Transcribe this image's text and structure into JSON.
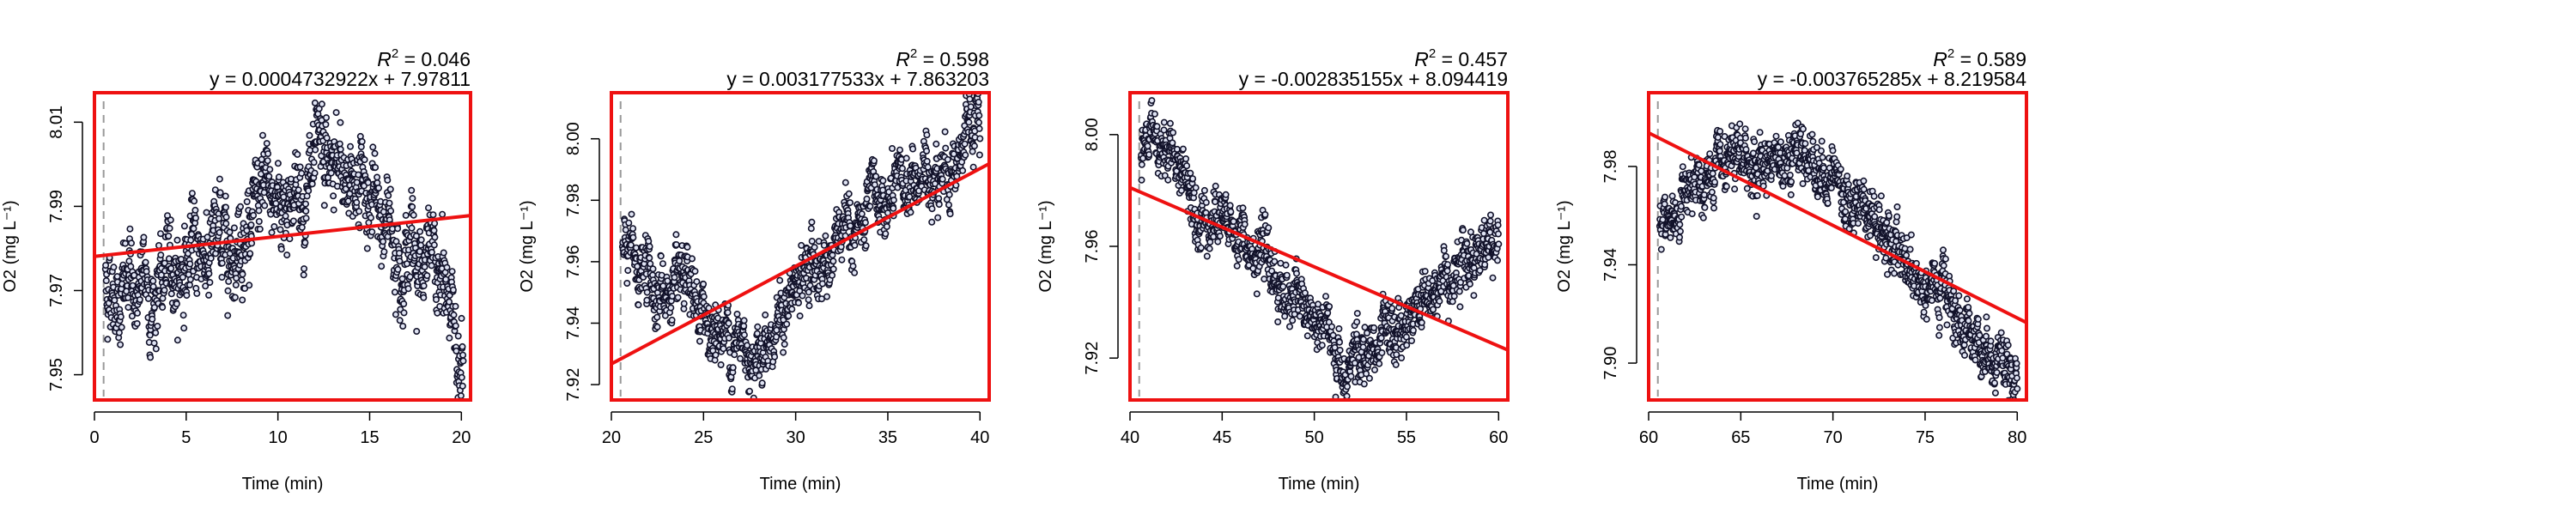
{
  "chart_data": [
    {
      "type": "scatter",
      "ylabel": "O2 (mg L⁻¹)",
      "xlabel": "Time (min)",
      "r2_value": "0.046",
      "equation": "y = 0.0004732922x + 7.97811",
      "xlim": [
        0,
        20.5
      ],
      "ylim": [
        7.944,
        8.017
      ],
      "xticks": [
        "0",
        "5",
        "10",
        "15",
        "20"
      ],
      "yticks": [
        "7.95",
        "7.97",
        "7.99",
        "8.01"
      ],
      "xtick_values": [
        0,
        5,
        10,
        15,
        20
      ],
      "ytick_values": [
        7.95,
        7.97,
        7.99,
        8.01
      ],
      "vline_x": 0.5,
      "fit": {
        "slope": 0.0004732922,
        "intercept": 7.97811
      },
      "trend_x": [
        0.6,
        2,
        3.2,
        5,
        7,
        9,
        10.5,
        12,
        13.5,
        14.5,
        15.5,
        17,
        18.5,
        19.5,
        20.1
      ],
      "trend_y": [
        7.972,
        7.97,
        7.969,
        7.978,
        7.982,
        7.989,
        7.993,
        7.995,
        7.997,
        7.998,
        7.987,
        7.983,
        7.975,
        7.964,
        7.955
      ],
      "noise": 0.0055,
      "n_points": 1300
    },
    {
      "type": "scatter",
      "ylabel": "O2 (mg L⁻¹)",
      "xlabel": "Time (min)",
      "r2_value": "0.598",
      "equation": "y = 0.003177533x + 7.863203",
      "xlim": [
        20,
        40.5
      ],
      "ylim": [
        7.915,
        8.015
      ],
      "xticks": [
        "20",
        "25",
        "30",
        "35",
        "40"
      ],
      "yticks": [
        "7.92",
        "7.94",
        "7.96",
        "7.98",
        "8.00"
      ],
      "xtick_values": [
        20,
        25,
        30,
        35,
        40
      ],
      "ytick_values": [
        7.92,
        7.94,
        7.96,
        7.98,
        8.0
      ],
      "vline_x": 20.5,
      "fit": {
        "slope": 0.003177533,
        "intercept": 7.863203
      },
      "trend_x": [
        20.6,
        22,
        24,
        26,
        27.5,
        29,
        31,
        33,
        35,
        37,
        39,
        40
      ],
      "trend_y": [
        7.962,
        7.955,
        7.945,
        7.937,
        7.932,
        7.94,
        7.958,
        7.968,
        7.978,
        7.988,
        7.996,
        8.002
      ],
      "noise": 0.0055,
      "n_points": 1300
    },
    {
      "type": "scatter",
      "ylabel": "O2 (mg L⁻¹)",
      "xlabel": "Time (min)",
      "r2_value": "0.457",
      "equation": "y = -0.002835155x + 8.094419",
      "xlim": [
        40,
        60.5
      ],
      "ylim": [
        7.905,
        8.015
      ],
      "xticks": [
        "40",
        "45",
        "50",
        "55",
        "60"
      ],
      "yticks": [
        "7.92",
        "7.96",
        "8.00"
      ],
      "xtick_values": [
        40,
        45,
        50,
        55,
        60
      ],
      "ytick_values": [
        7.92,
        7.96,
        8.0
      ],
      "vline_x": 40.5,
      "fit": {
        "slope": -0.002835155,
        "intercept": 8.094419
      },
      "trend_x": [
        40.6,
        41.2,
        42,
        44,
        46,
        48,
        50,
        52,
        54,
        55.5,
        57,
        58.5,
        60
      ],
      "trend_y": [
        7.985,
        8.002,
        7.995,
        7.975,
        7.962,
        7.948,
        7.932,
        7.918,
        7.925,
        7.938,
        7.95,
        7.958,
        7.965
      ],
      "noise": 0.0055,
      "n_points": 1300
    },
    {
      "type": "scatter",
      "ylabel": "O2 (mg L⁻¹)",
      "xlabel": "Time (min)",
      "r2_value": "0.589",
      "equation": "y = -0.003765285x + 8.219584",
      "xlim": [
        60,
        80.5
      ],
      "ylim": [
        7.885,
        8.01
      ],
      "xticks": [
        "60",
        "65",
        "70",
        "75",
        "80"
      ],
      "yticks": [
        "7.90",
        "7.94",
        "7.98"
      ],
      "xtick_values": [
        60,
        65,
        70,
        75,
        80
      ],
      "ytick_values": [
        7.9,
        7.94,
        7.98
      ],
      "vline_x": 60.5,
      "fit": {
        "slope": -0.003765285,
        "intercept": 8.219584
      },
      "trend_x": [
        60.6,
        62,
        64,
        66,
        68,
        69.5,
        71,
        73,
        75,
        77,
        79,
        80
      ],
      "trend_y": [
        7.955,
        7.965,
        7.975,
        7.983,
        7.988,
        7.98,
        7.97,
        7.948,
        7.932,
        7.918,
        7.903,
        7.898
      ],
      "noise": 0.006,
      "n_points": 1300
    }
  ]
}
